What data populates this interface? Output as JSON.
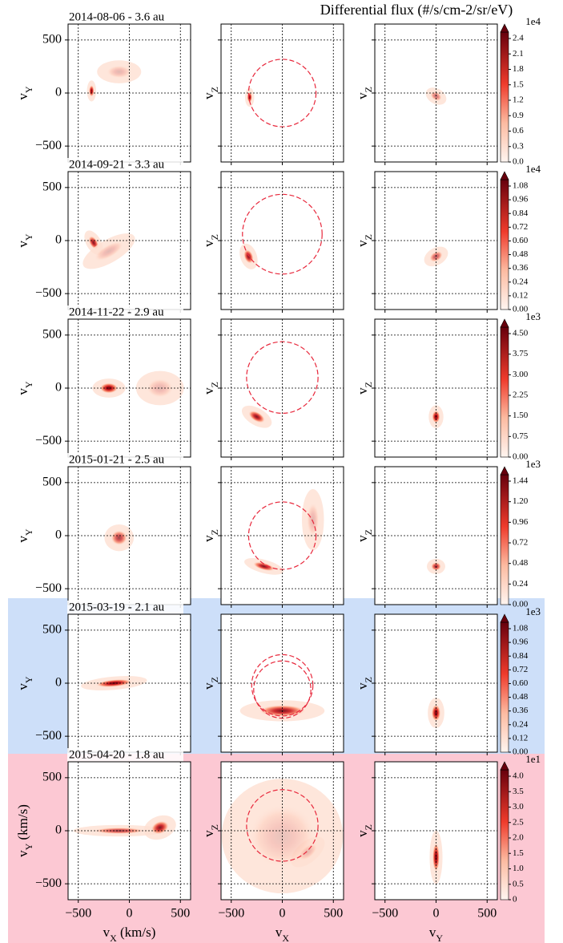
{
  "title": "Differential flux (#/s/cm-2/sr/eV)",
  "x_lim": [
    -600,
    600
  ],
  "y_lim": [
    -650,
    650
  ],
  "ticks": [
    {
      "value": -500,
      "label": "−500"
    },
    {
      "value": 0,
      "label": "0"
    },
    {
      "value": 500,
      "label": "500"
    }
  ],
  "x_labels": [
    {
      "text": "v",
      "sub": "X",
      "unit": " (km/s)"
    },
    {
      "text": "v",
      "sub": "X"
    },
    {
      "text": "v",
      "sub": "Y"
    }
  ],
  "y_labels": [
    {
      "text": "v",
      "sub": "Y"
    },
    {
      "text": "v",
      "sub": "Z"
    },
    {
      "text": "v",
      "sub": "Z"
    }
  ],
  "y_label_bottom_left": {
    "text": "v",
    "sub": "Y",
    "unit": " (km/s)"
  },
  "rows": [
    {
      "label": "2014-08-06 - 3.6 au",
      "cbar_exponent": "1e4",
      "cbar_ticks": [
        "0.0",
        "0.3",
        "0.6",
        "0.9",
        "1.2",
        "1.5",
        "1.8",
        "2.1",
        "2.4"
      ]
    },
    {
      "label": "2014-09-21 - 3.3 au",
      "cbar_exponent": "1e4",
      "cbar_ticks": [
        "0.00",
        "0.12",
        "0.24",
        "0.36",
        "0.48",
        "0.60",
        "0.72",
        "0.84",
        "0.96",
        "1.08"
      ]
    },
    {
      "label": "2014-11-22 - 2.9 au",
      "cbar_exponent": "1e3",
      "cbar_ticks": [
        "0.00",
        "0.75",
        "1.50",
        "2.25",
        "3.00",
        "3.75",
        "4.50"
      ]
    },
    {
      "label": "2015-01-21 - 2.5 au",
      "cbar_exponent": "1e3",
      "cbar_ticks": [
        "0.00",
        "0.24",
        "0.48",
        "0.72",
        "0.96",
        "1.20",
        "1.44"
      ]
    },
    {
      "label": "2015-03-19 - 2.1 au",
      "cbar_exponent": "1e3",
      "cbar_ticks": [
        "0.00",
        "0.12",
        "0.24",
        "0.36",
        "0.48",
        "0.60",
        "0.72",
        "0.84",
        "0.96",
        "1.08"
      ],
      "background": "#cddff9"
    },
    {
      "label": "2015-04-20 - 1.8 au",
      "cbar_exponent": "1e1",
      "cbar_ticks": [
        "0",
        "0.5",
        "1.0",
        "1.5",
        "2.0",
        "2.5",
        "3.0",
        "3.5",
        "4.0"
      ],
      "background": "#fcc8d3"
    }
  ]
}
